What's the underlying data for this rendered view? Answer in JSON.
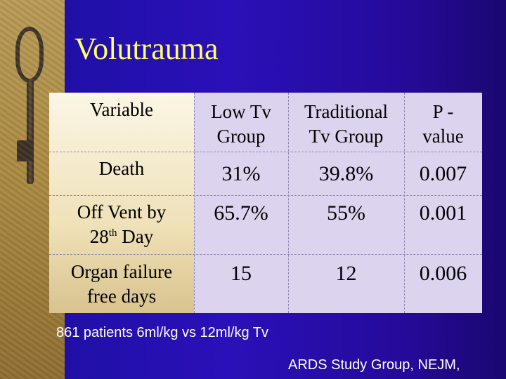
{
  "slide": {
    "title": "Volutrauma",
    "colors": {
      "background": "#2a10b8",
      "title": "#ffff66",
      "table_left": "#f4ead0",
      "table_right": "#dcd4ee",
      "footnote": "#ffffff"
    }
  },
  "table": {
    "headers": {
      "variable": "Variable",
      "low_tv": [
        "Low Tv",
        "Group"
      ],
      "traditional": [
        "Traditional",
        "Tv Group"
      ],
      "p_value": [
        "P -",
        "value"
      ]
    },
    "rows": [
      {
        "label": [
          "Death"
        ],
        "low_tv": "31%",
        "traditional": "39.8%",
        "p_value": "0.007"
      },
      {
        "label": [
          "Off Vent by",
          "28",
          "th",
          " Day"
        ],
        "low_tv": "65.7%",
        "traditional": "55%",
        "p_value": "0.001"
      },
      {
        "label": [
          "Organ failure",
          "free days"
        ],
        "low_tv": "15",
        "traditional": "12",
        "p_value": "0.006"
      }
    ]
  },
  "footnotes": {
    "left": "861 patients 6ml/kg vs 12ml/kg Tv",
    "right": "ARDS Study Group, NEJM,"
  }
}
